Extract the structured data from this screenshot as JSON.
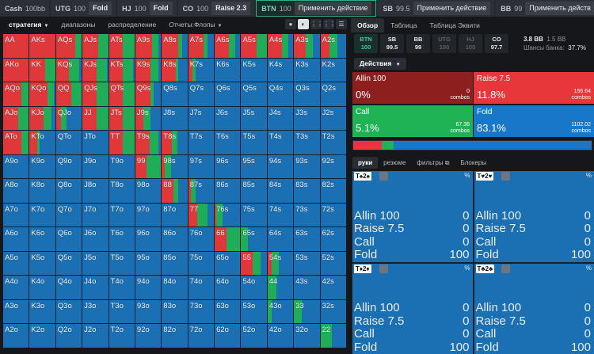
{
  "colors": {
    "allin": "#e0383a",
    "raise": "#e0383a",
    "call": "#1fae57",
    "fold": "#1b6fb3",
    "allin_box": "#8e1f1f",
    "raise_box": "#e8373b",
    "call_box": "#1fb356",
    "fold_box": "#1877c9"
  },
  "topbar": {
    "seats": [
      {
        "pos": "Cash",
        "stack": "100bb",
        "action": ""
      },
      {
        "pos": "UTG",
        "stack": "100",
        "action": "Fold"
      },
      {
        "pos": "HJ",
        "stack": "100",
        "action": "Fold"
      },
      {
        "pos": "CO",
        "stack": "100",
        "action": "Raise 2.3"
      },
      {
        "pos": "BTN",
        "stack": "100",
        "action": "Применить действие",
        "active": true
      },
      {
        "pos": "SB",
        "stack": "99.5",
        "action": "Применить действие"
      },
      {
        "pos": "BB",
        "stack": "99",
        "action": "Применить действ"
      }
    ]
  },
  "left_tabs": [
    "стратегия",
    "диапазоны",
    "распределение",
    "Отчеты:Флопы"
  ],
  "tools": [
    "●",
    "◐",
    "⋮⋮",
    "⋮⋮",
    "☰"
  ],
  "grid": {
    "labels": [
      [
        "AA",
        "AKs",
        "AQs",
        "AJs",
        "ATs",
        "A9s",
        "A8s",
        "A7s",
        "A6s",
        "A5s",
        "A4s",
        "A3s",
        "A2s"
      ],
      [
        "AKo",
        "KK",
        "KQs",
        "KJs",
        "KTs",
        "K9s",
        "K8s",
        "K7s",
        "K6s",
        "K5s",
        "K4s",
        "K3s",
        "K2s"
      ],
      [
        "AQo",
        "KQo",
        "QQ",
        "QJs",
        "QTs",
        "Q9s",
        "Q8s",
        "Q7s",
        "Q6s",
        "Q5s",
        "Q4s",
        "Q3s",
        "Q2s"
      ],
      [
        "AJo",
        "KJo",
        "QJo",
        "JJ",
        "JTs",
        "J9s",
        "J8s",
        "J7s",
        "J6s",
        "J5s",
        "J4s",
        "J3s",
        "J2s"
      ],
      [
        "ATo",
        "KTo",
        "QTo",
        "JTo",
        "TT",
        "T9s",
        "T8s",
        "T7s",
        "T6s",
        "T5s",
        "T4s",
        "T3s",
        "T2s"
      ],
      [
        "A9o",
        "K9o",
        "Q9o",
        "J9o",
        "T9o",
        "99",
        "98s",
        "97s",
        "96s",
        "95s",
        "94s",
        "93s",
        "92s"
      ],
      [
        "A8o",
        "K8o",
        "Q8o",
        "J8o",
        "T8o",
        "98o",
        "88",
        "87s",
        "86s",
        "85s",
        "84s",
        "83s",
        "82s"
      ],
      [
        "A7o",
        "K7o",
        "Q7o",
        "J7o",
        "T7o",
        "97o",
        "87o",
        "77",
        "76s",
        "75s",
        "74s",
        "73s",
        "72s"
      ],
      [
        "A6o",
        "K6o",
        "Q6o",
        "J6o",
        "T6o",
        "96o",
        "86o",
        "76o",
        "66",
        "65s",
        "64s",
        "63s",
        "62s"
      ],
      [
        "A5o",
        "K5o",
        "Q5o",
        "J5o",
        "T5o",
        "95o",
        "85o",
        "75o",
        "65o",
        "55",
        "54s",
        "53s",
        "52s"
      ],
      [
        "A4o",
        "K4o",
        "Q4o",
        "J4o",
        "T4o",
        "94o",
        "84o",
        "74o",
        "64o",
        "54o",
        "44",
        "43s",
        "42s"
      ],
      [
        "A3o",
        "K3o",
        "Q3o",
        "J3o",
        "T3o",
        "93o",
        "83o",
        "73o",
        "63o",
        "53o",
        "43o",
        "33",
        "32s"
      ],
      [
        "A2o",
        "K2o",
        "Q2o",
        "J2o",
        "T2o",
        "92o",
        "82o",
        "72o",
        "62o",
        "52o",
        "42o",
        "32o",
        "22"
      ]
    ],
    "freq": [
      [
        [
          0,
          1,
          0
        ],
        [
          0,
          1,
          0
        ],
        [
          0,
          0.75,
          0.25
        ],
        [
          0,
          0.6,
          0.4
        ],
        [
          0,
          0.55,
          0.45
        ],
        [
          0,
          0.65,
          0.25
        ],
        [
          0,
          0.65,
          0.15
        ],
        [
          0,
          0.6,
          0.15
        ],
        [
          0,
          0.55,
          0.25
        ],
        [
          0,
          0.6,
          0.4
        ],
        [
          0,
          0.55,
          0.25
        ],
        [
          0,
          0.45,
          0.3
        ],
        [
          0,
          0.35,
          0.3
        ]
      ],
      [
        [
          0,
          1,
          0
        ],
        [
          0,
          0.6,
          0.4
        ],
        [
          0,
          0.5,
          0.4
        ],
        [
          0,
          0.55,
          0.4
        ],
        [
          0,
          0.55,
          0.4
        ],
        [
          0,
          0.6,
          0.3
        ],
        [
          0,
          0.55,
          0.1
        ],
        [
          0,
          0.15,
          0.15
        ],
        [
          0,
          0,
          0
        ],
        [
          0,
          0,
          0
        ],
        [
          0,
          0,
          0
        ],
        [
          0,
          0,
          0
        ],
        [
          0,
          0,
          0
        ]
      ],
      [
        [
          0,
          0.7,
          0.3
        ],
        [
          0,
          0.7,
          0.25
        ],
        [
          0,
          0.6,
          0.4
        ],
        [
          0,
          0.55,
          0.45
        ],
        [
          0,
          0.55,
          0.45
        ],
        [
          0,
          0.6,
          0.1
        ],
        [
          0,
          0,
          0
        ],
        [
          0,
          0,
          0
        ],
        [
          0,
          0,
          0
        ],
        [
          0,
          0,
          0
        ],
        [
          0,
          0,
          0
        ],
        [
          0,
          0,
          0
        ],
        [
          0,
          0,
          0
        ]
      ],
      [
        [
          0,
          0.6,
          0.4
        ],
        [
          0,
          0.55,
          0.3
        ],
        [
          0,
          0.2,
          0.2
        ],
        [
          0,
          0.55,
          0.45
        ],
        [
          0,
          0.55,
          0.45
        ],
        [
          0,
          0.3,
          0.3
        ],
        [
          0,
          0,
          0
        ],
        [
          0,
          0,
          0
        ],
        [
          0,
          0,
          0
        ],
        [
          0,
          0,
          0
        ],
        [
          0,
          0,
          0
        ],
        [
          0,
          0,
          0
        ],
        [
          0,
          0,
          0
        ]
      ],
      [
        [
          0,
          0.7,
          0.3
        ],
        [
          0,
          0.3,
          0.1
        ],
        [
          0,
          0,
          0
        ],
        [
          0,
          0,
          0
        ],
        [
          0,
          0.55,
          0.45
        ],
        [
          0,
          0.55,
          0.35
        ],
        [
          0,
          0.4,
          0.2
        ],
        [
          0,
          0,
          0
        ],
        [
          0,
          0,
          0
        ],
        [
          0,
          0,
          0
        ],
        [
          0,
          0,
          0
        ],
        [
          0,
          0,
          0
        ],
        [
          0,
          0,
          0
        ]
      ],
      [
        [
          0,
          0,
          0
        ],
        [
          0,
          0,
          0
        ],
        [
          0,
          0,
          0
        ],
        [
          0,
          0,
          0
        ],
        [
          0,
          0,
          0
        ],
        [
          0,
          0.45,
          0.55
        ],
        [
          0,
          0.1,
          0.25
        ],
        [
          0,
          0,
          0
        ],
        [
          0,
          0,
          0
        ],
        [
          0,
          0,
          0
        ],
        [
          0,
          0,
          0
        ],
        [
          0,
          0,
          0
        ],
        [
          0,
          0,
          0
        ]
      ],
      [
        [
          0,
          0,
          0
        ],
        [
          0,
          0,
          0
        ],
        [
          0,
          0,
          0
        ],
        [
          0,
          0,
          0
        ],
        [
          0,
          0,
          0
        ],
        [
          0,
          0,
          0
        ],
        [
          0,
          0.45,
          0.2
        ],
        [
          0,
          0.1,
          0.2
        ],
        [
          0,
          0,
          0
        ],
        [
          0,
          0,
          0
        ],
        [
          0,
          0,
          0
        ],
        [
          0,
          0,
          0
        ],
        [
          0,
          0,
          0
        ]
      ],
      [
        [
          0,
          0,
          0
        ],
        [
          0,
          0,
          0
        ],
        [
          0,
          0,
          0
        ],
        [
          0,
          0,
          0
        ],
        [
          0,
          0,
          0
        ],
        [
          0,
          0,
          0
        ],
        [
          0,
          0,
          0
        ],
        [
          0,
          0.35,
          0.4
        ],
        [
          0,
          0.05,
          0.25
        ],
        [
          0,
          0,
          0
        ],
        [
          0,
          0,
          0
        ],
        [
          0,
          0,
          0
        ],
        [
          0,
          0,
          0
        ]
      ],
      [
        [
          0,
          0,
          0
        ],
        [
          0,
          0,
          0
        ],
        [
          0,
          0,
          0
        ],
        [
          0,
          0,
          0
        ],
        [
          0,
          0,
          0
        ],
        [
          0,
          0,
          0
        ],
        [
          0,
          0,
          0
        ],
        [
          0,
          0,
          0
        ],
        [
          0,
          0.45,
          0.55
        ],
        [
          0,
          0,
          0.25
        ],
        [
          0,
          0,
          0
        ],
        [
          0,
          0,
          0
        ],
        [
          0,
          0,
          0
        ]
      ],
      [
        [
          0,
          0,
          0
        ],
        [
          0,
          0,
          0
        ],
        [
          0,
          0,
          0
        ],
        [
          0,
          0,
          0
        ],
        [
          0,
          0,
          0
        ],
        [
          0,
          0,
          0
        ],
        [
          0,
          0,
          0
        ],
        [
          0,
          0,
          0
        ],
        [
          0,
          0,
          0
        ],
        [
          0,
          0.45,
          0.3
        ],
        [
          0,
          0.15,
          0.3
        ],
        [
          0,
          0,
          0
        ],
        [
          0,
          0,
          0
        ]
      ],
      [
        [
          0,
          0,
          0
        ],
        [
          0,
          0,
          0
        ],
        [
          0,
          0,
          0
        ],
        [
          0,
          0,
          0
        ],
        [
          0,
          0,
          0
        ],
        [
          0,
          0,
          0
        ],
        [
          0,
          0,
          0
        ],
        [
          0,
          0,
          0
        ],
        [
          0,
          0,
          0
        ],
        [
          0,
          0,
          0
        ],
        [
          0,
          0,
          0.35
        ],
        [
          0,
          0,
          0
        ],
        [
          0,
          0,
          0
        ]
      ],
      [
        [
          0,
          0,
          0
        ],
        [
          0,
          0,
          0
        ],
        [
          0,
          0,
          0
        ],
        [
          0,
          0,
          0
        ],
        [
          0,
          0,
          0
        ],
        [
          0,
          0,
          0
        ],
        [
          0,
          0,
          0
        ],
        [
          0,
          0,
          0
        ],
        [
          0,
          0,
          0
        ],
        [
          0,
          0,
          0
        ],
        [
          0,
          0,
          0.15
        ],
        [
          0,
          0,
          0.3
        ],
        [
          0,
          0,
          0
        ]
      ],
      [
        [
          0,
          0,
          0
        ],
        [
          0,
          0,
          0
        ],
        [
          0,
          0,
          0
        ],
        [
          0,
          0,
          0
        ],
        [
          0,
          0,
          0
        ],
        [
          0,
          0,
          0
        ],
        [
          0,
          0,
          0
        ],
        [
          0,
          0,
          0
        ],
        [
          0,
          0,
          0
        ],
        [
          0,
          0,
          0
        ],
        [
          0,
          0,
          0
        ],
        [
          0,
          0,
          0
        ],
        [
          0,
          0,
          0.45
        ]
      ]
    ]
  },
  "right_tabs": [
    "Обзор",
    "Таблица",
    "Таблица Эквити"
  ],
  "positions": [
    {
      "name": "BTN",
      "stack": "100",
      "state": "btn"
    },
    {
      "name": "SB",
      "stack": "99.5",
      "state": "on"
    },
    {
      "name": "BB",
      "stack": "99",
      "state": "on"
    },
    {
      "name": "UTG",
      "stack": "100",
      "state": "dim"
    },
    {
      "name": "HJ",
      "stack": "100",
      "state": "dim"
    },
    {
      "name": "CO",
      "stack": "97.7",
      "state": "on"
    }
  ],
  "pot": {
    "line1": "3.8 BB",
    "line1b": "1.5 BB",
    "line2": "Шансы банка:",
    "line2b": "37.7%"
  },
  "actions_label": "Действия",
  "actions": [
    {
      "name": "Allin 100",
      "pct": "0%",
      "combos": "0",
      "combos_label": "combos"
    },
    {
      "name": "Raise 7.5",
      "pct": "11.8%",
      "combos": "156.64",
      "combos_label": "combos"
    },
    {
      "name": "Call",
      "pct": "5.1%",
      "combos": "67.36",
      "combos_label": "combos"
    },
    {
      "name": "Fold",
      "pct": "83.1%",
      "combos": "1102.02",
      "combos_label": "combos"
    }
  ],
  "freqbar": {
    "raise": 0.118,
    "call": 0.051,
    "fold": 0.831
  },
  "sub_tabs": [
    "руки",
    "резюме",
    "фильтры",
    "Блокеры"
  ],
  "hand_panels": [
    {
      "combo": "T♠2♠",
      "suit": "black",
      "pct": "%",
      "rows": [
        [
          "Allin 100",
          "0"
        ],
        [
          "Raise 7.5",
          "0"
        ],
        [
          "Call",
          "0"
        ],
        [
          "Fold",
          "100"
        ]
      ]
    },
    {
      "combo": "T♥2♥",
      "suit": "red",
      "pct": "%",
      "rows": [
        [
          "Allin 100",
          "0"
        ],
        [
          "Raise 7.5",
          "0"
        ],
        [
          "Call",
          "0"
        ],
        [
          "Fold",
          "100"
        ]
      ]
    },
    {
      "combo": "T♦2♦",
      "suit": "blue",
      "pct": "%",
      "rows": [
        [
          "Allin 100",
          "0"
        ],
        [
          "Raise 7.5",
          "0"
        ],
        [
          "Call",
          "0"
        ],
        [
          "Fold",
          "100"
        ]
      ]
    },
    {
      "combo": "T♣2♣",
      "suit": "green",
      "pct": "%",
      "rows": [
        [
          "Allin 100",
          "0"
        ],
        [
          "Raise 7.5",
          "0"
        ],
        [
          "Call",
          "0"
        ],
        [
          "Fold",
          "100"
        ]
      ]
    }
  ]
}
